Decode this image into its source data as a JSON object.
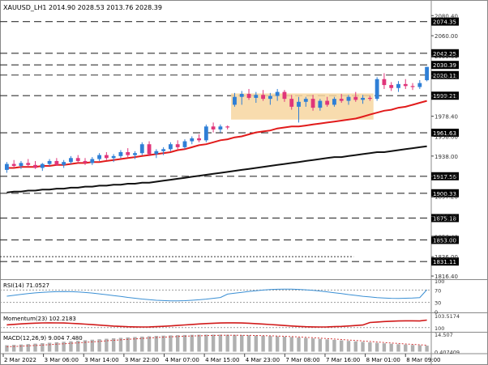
{
  "header": {
    "title": "XAUUSD_LH1  2014.90 2028.53 2013.76 2028.39"
  },
  "colors": {
    "bull": "#2f7fd6",
    "bear": "#e0357a",
    "ma_fast": "#e11b1b",
    "ma_slow": "#111111",
    "zone": "#f7d6a0",
    "hline": "#333333",
    "rsi": "#3a8fd4",
    "momentum": "#d11a1a",
    "macd_sig": "#d63b3b",
    "label_bg": "#000000",
    "label_fg": "#ffffff"
  },
  "chart_data": {
    "type": "candlestick",
    "symbol": "XAUUSD",
    "timeframe": "H1",
    "ohlc_last": {
      "open": 2014.9,
      "high": 2028.53,
      "low": 2013.76,
      "close": 2028.39
    },
    "price_axis_ticks": [
      2080.4,
      2060.0,
      2039.6,
      2019.2,
      1998.8,
      1978.4,
      1958.0,
      1938.0,
      1917.6,
      1897.2,
      1876.8,
      1856.4,
      1836.0,
      1816.4
    ],
    "price_range": [
      1814,
      2088
    ],
    "level_lines": [
      {
        "value": 2074.35,
        "label": "2074.35"
      },
      {
        "value": 2042.25,
        "label": "2042.25"
      },
      {
        "value": 2030.39,
        "label": "2030.39"
      },
      {
        "value": 2020.11,
        "label": "2020.11"
      },
      {
        "value": 1999.21,
        "label": "1999.21"
      },
      {
        "value": 1961.63,
        "label": "1961.63"
      },
      {
        "value": 1917.56,
        "label": "1917.56"
      },
      {
        "value": 1900.33,
        "label": "1900.33"
      },
      {
        "value": 1875.18,
        "label": "1875.18"
      },
      {
        "value": 1853.0,
        "label": "1853.00"
      },
      {
        "value": 1831.11,
        "label": "1831.11"
      }
    ],
    "dotted_line": {
      "value": 1836.0,
      "x_end_fraction": 0.82
    },
    "x_labels": [
      "2 Mar 2022",
      "3 Mar 06:00",
      "3 Mar 14:00",
      "3 Mar 22:00",
      "4 Mar 07:00",
      "4 Mar 15:00",
      "4 Mar 23:00",
      "7 Mar 08:00",
      "7 Mar 16:00",
      "8 Mar 01:00",
      "8 Mar 09:00"
    ],
    "candles": [
      [
        1924,
        1932,
        1921,
        1930
      ],
      [
        1930,
        1934,
        1926,
        1928
      ],
      [
        1928,
        1933,
        1925,
        1931
      ],
      [
        1931,
        1935,
        1927,
        1929
      ],
      [
        1929,
        1933,
        1925,
        1926
      ],
      [
        1926,
        1931,
        1923,
        1930
      ],
      [
        1930,
        1935,
        1928,
        1933
      ],
      [
        1933,
        1936,
        1928,
        1929
      ],
      [
        1929,
        1934,
        1926,
        1932
      ],
      [
        1932,
        1938,
        1930,
        1936
      ],
      [
        1936,
        1939,
        1931,
        1933
      ],
      [
        1933,
        1936,
        1929,
        1931
      ],
      [
        1931,
        1937,
        1929,
        1935
      ],
      [
        1935,
        1941,
        1933,
        1939
      ],
      [
        1939,
        1942,
        1934,
        1936
      ],
      [
        1936,
        1940,
        1932,
        1938
      ],
      [
        1938,
        1944,
        1936,
        1942
      ],
      [
        1942,
        1946,
        1937,
        1939
      ],
      [
        1939,
        1943,
        1935,
        1941
      ],
      [
        1941,
        1952,
        1939,
        1950
      ],
      [
        1950,
        1953,
        1938,
        1940
      ],
      [
        1940,
        1945,
        1936,
        1943
      ],
      [
        1943,
        1947,
        1939,
        1945
      ],
      [
        1945,
        1952,
        1943,
        1950
      ],
      [
        1950,
        1954,
        1945,
        1947
      ],
      [
        1947,
        1955,
        1945,
        1953
      ],
      [
        1953,
        1958,
        1950,
        1956
      ],
      [
        1956,
        1960,
        1952,
        1954
      ],
      [
        1954,
        1970,
        1952,
        1968
      ],
      [
        1968,
        1972,
        1962,
        1965
      ],
      [
        1965,
        1970,
        1962,
        1968
      ],
      [
        1968,
        1969,
        1965,
        1967
      ],
      [
        1990,
        2002,
        1988,
        1998
      ],
      [
        1998,
        2004,
        1990,
        2001
      ],
      [
        2001,
        2006,
        1995,
        1997
      ],
      [
        1997,
        2003,
        1992,
        2000
      ],
      [
        2000,
        2005,
        1994,
        1996
      ],
      [
        1996,
        2002,
        1990,
        1999
      ],
      [
        1999,
        2006,
        1994,
        2003
      ],
      [
        2003,
        2005,
        1993,
        1996
      ],
      [
        1996,
        2000,
        1985,
        1988
      ],
      [
        1988,
        1998,
        1972,
        1993
      ],
      [
        1993,
        1998,
        1988,
        1996
      ],
      [
        1996,
        2000,
        1984,
        1987
      ],
      [
        1987,
        1996,
        1984,
        1994
      ],
      [
        1994,
        1998,
        1988,
        1990
      ],
      [
        1990,
        1998,
        1988,
        1996
      ],
      [
        1996,
        2001,
        1992,
        1994
      ],
      [
        1994,
        2000,
        1990,
        1998
      ],
      [
        1998,
        2003,
        1993,
        1995
      ],
      [
        1995,
        2000,
        1991,
        1997
      ],
      [
        1997,
        1999,
        1994,
        1996
      ],
      [
        1996,
        2018,
        1994,
        2016
      ],
      [
        2016,
        2022,
        2006,
        2010
      ],
      [
        2010,
        2013,
        2004,
        2007
      ],
      [
        2007,
        2014,
        2003,
        2011
      ],
      [
        2011,
        2016,
        2006,
        2009
      ],
      [
        2009,
        2012,
        2005,
        2008
      ],
      [
        2008,
        2015,
        2006,
        2012
      ],
      [
        2014.9,
        2028.53,
        2013.76,
        2028.39
      ]
    ],
    "ma_fast": [
      1926,
      1926,
      1927,
      1927,
      1927,
      1928,
      1928,
      1929,
      1929,
      1930,
      1931,
      1931,
      1932,
      1932,
      1933,
      1934,
      1935,
      1936,
      1937,
      1938,
      1939,
      1940,
      1941,
      1942,
      1944,
      1945,
      1947,
      1949,
      1950,
      1952,
      1954,
      1955,
      1957,
      1958,
      1960,
      1962,
      1963,
      1964,
      1966,
      1967,
      1968,
      1968,
      1969,
      1970,
      1971,
      1972,
      1973,
      1974,
      1975,
      1976,
      1978,
      1980,
      1982,
      1984,
      1985,
      1987,
      1988,
      1990,
      1992,
      1994
    ],
    "ma_slow": [
      1901,
      1902,
      1902,
      1903,
      1903,
      1904,
      1904,
      1905,
      1905,
      1906,
      1906,
      1907,
      1907,
      1908,
      1908,
      1909,
      1909,
      1910,
      1910,
      1911,
      1911,
      1912,
      1913,
      1914,
      1915,
      1916,
      1917,
      1918,
      1919,
      1920,
      1921,
      1922,
      1923,
      1924,
      1925,
      1926,
      1927,
      1928,
      1929,
      1930,
      1931,
      1932,
      1933,
      1934,
      1935,
      1936,
      1937,
      1937,
      1938,
      1939,
      1940,
      1941,
      1942,
      1942,
      1943,
      1944,
      1945,
      1946,
      1947,
      1948
    ],
    "zone": {
      "start_index": 32,
      "end_index": 52,
      "top": 2001.5,
      "bottom": 1975.0
    },
    "indicators": {
      "rsi": {
        "label": "RSI(14) 71.0527",
        "ticks": [
          "100",
          "70",
          "30",
          "0"
        ],
        "value": 71.0527
      },
      "momentum": {
        "label": "Momentum(23) 102.2183",
        "ticks": [
          "103.5174",
          "100"
        ],
        "value": 102.2183
      },
      "macd": {
        "label": "MACD(12,26,9) 9.004 7.480",
        "ticks": [
          "14.507",
          "0.407409"
        ],
        "values": [
          9.004,
          7.48
        ]
      }
    }
  }
}
